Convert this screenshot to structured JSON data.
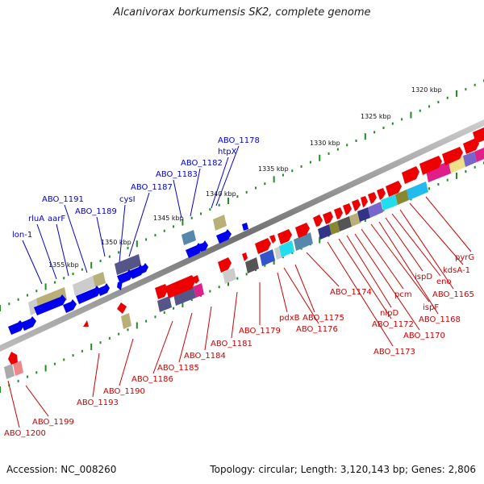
{
  "title": "Alcanivorax borkumensis SK2, complete genome",
  "accession": "Accession: NC_008260",
  "stats": "Topology: circular; Length: 3,120,143 bp; Genes: 2,806",
  "ruler": [
    {
      "label": "1320 kbp",
      "pos": 1320
    },
    {
      "label": "1325 kbp",
      "pos": 1325
    },
    {
      "label": "1330 kbp",
      "pos": 1330
    },
    {
      "label": "1335 kbp",
      "pos": 1335
    },
    {
      "label": "1340 kbp",
      "pos": 1340
    },
    {
      "label": "1345 kbp",
      "pos": 1345
    },
    {
      "label": "1350 kbp",
      "pos": 1350
    },
    {
      "label": "1355 kbp",
      "pos": 1355
    }
  ],
  "upper_labels": [
    {
      "text": "lon-1",
      "color": "#0000cc"
    },
    {
      "text": "rluA",
      "color": "#0000cc"
    },
    {
      "text": "aarF",
      "color": "#0000cc"
    },
    {
      "text": "ABO_1191",
      "color": "#0000cc"
    },
    {
      "text": "ABO_1189",
      "color": "#0000cc"
    },
    {
      "text": "cysI",
      "color": "#0000cc"
    },
    {
      "text": "ABO_1187",
      "color": "#0000cc"
    },
    {
      "text": "ABO_1183",
      "color": "#0000cc"
    },
    {
      "text": "ABO_1182",
      "color": "#0000cc"
    },
    {
      "text": "htpX",
      "color": "#0000cc"
    },
    {
      "text": "ABO_1178",
      "color": "#0000cc"
    }
  ],
  "lower_labels": [
    {
      "text": "ABO_1200"
    },
    {
      "text": "ABO_1199"
    },
    {
      "text": "ABO_1193"
    },
    {
      "text": "ABO_1190"
    },
    {
      "text": "ABO_1186"
    },
    {
      "text": "ABO_1185"
    },
    {
      "text": "ABO_1184"
    },
    {
      "text": "ABO_1181"
    },
    {
      "text": "ABO_1179"
    },
    {
      "text": "pdxB"
    },
    {
      "text": "ABO_1175"
    },
    {
      "text": "ABO_1176"
    },
    {
      "text": "ABO_1174"
    },
    {
      "text": "ABO_1173"
    },
    {
      "text": "ABO_1172"
    },
    {
      "text": "nlpD"
    },
    {
      "text": "ABO_1170"
    },
    {
      "text": "pcm"
    },
    {
      "text": "ispF"
    },
    {
      "text": "ABO_1168"
    },
    {
      "text": "ispD"
    },
    {
      "text": "eno"
    },
    {
      "text": "ABO_1165"
    },
    {
      "text": "kdsA-1"
    },
    {
      "text": "pyrG"
    }
  ],
  "colors": {
    "forward": "#ff0000",
    "reverse": "#0000ff",
    "backbone": "#888888",
    "tick": "#228b22",
    "upper_label": "#0000cc",
    "lower_label": "#cc0000"
  }
}
